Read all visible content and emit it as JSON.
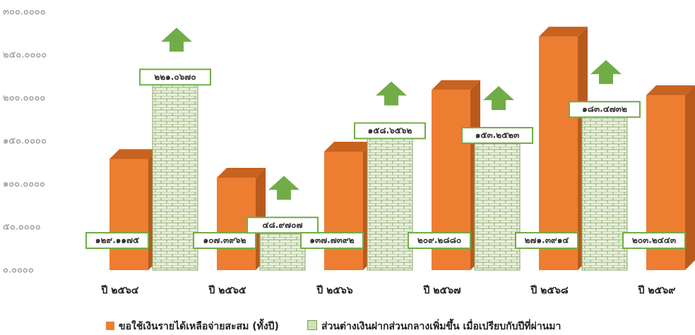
{
  "chart_data": {
    "type": "bar3d",
    "categories": [
      "ปี ๒๕๖๔",
      "ปี ๒๕๖๕",
      "ปี ๒๕๖๖",
      "ปี ๒๕๖๗",
      "ปี ๒๕๖๘",
      "ปี ๒๕๖๙"
    ],
    "series": [
      {
        "name": "ขอใช้เงินรายได้เหลือจ่ายสะสม (ทั้งปี)",
        "color": "#ed7d31",
        "values": [
          129.1175,
          107.3962,
          137.7392,
          209.288,
          271.3914,
          203.2443
        ],
        "value_labels": [
          "๑๒๙.๑๑๗๕",
          "๑๐๗.๓๙๖๒",
          "๑๓๗.๗๓๙๒",
          "๒๐๙.๒๘๘๐",
          "๒๗๑.๓๙๑๔",
          "๒๐๓.๒๔๔๓"
        ]
      },
      {
        "name": "ส่วนต่างเงินฝากส่วนกลางเพิ่มขึ้น เมื่อเปรียบกับปีที่ผ่านมา",
        "color": "#cfe2b4",
        "values": [
          221.067,
          48.9707,
          158.6562,
          153.2523,
          183.4732,
          null
        ],
        "value_labels": [
          "๒๒๑.๐๖๗๐",
          "๔๘.๙๗๐๗",
          "๑๕๘.๖๕๖๒",
          "๑๕๓.๒๕๒๓",
          "๑๘๓.๔๗๓๒",
          null
        ]
      }
    ],
    "ylim": [
      0,
      300
    ],
    "yticks": [
      {
        "value": 0,
        "label": "๐.๐๐๐๐"
      },
      {
        "value": 50,
        "label": "๕๐.๐๐๐๐"
      },
      {
        "value": 100,
        "label": "๑๐๐.๐๐๐๐"
      },
      {
        "value": 150,
        "label": "๑๕๐.๐๐๐๐"
      },
      {
        "value": 200,
        "label": "๒๐๐.๐๐๐๐"
      },
      {
        "value": 250,
        "label": "๒๕๐.๐๐๐๐"
      },
      {
        "value": 300,
        "label": "๓๐๐.๐๐๐๐"
      }
    ]
  }
}
